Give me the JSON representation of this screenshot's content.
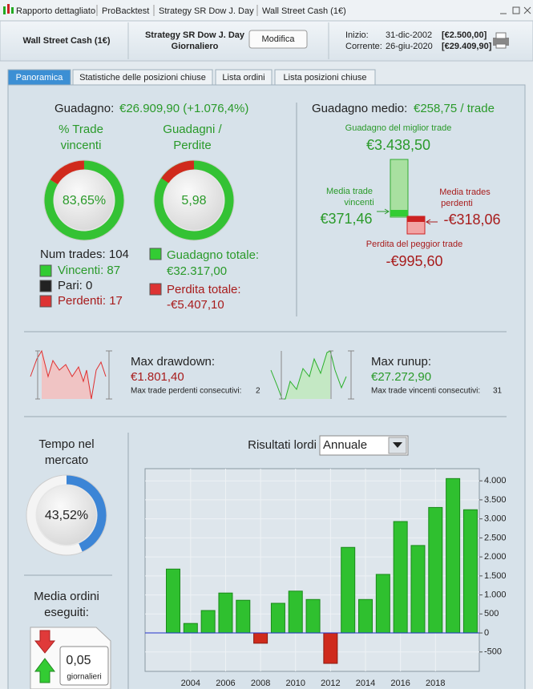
{
  "titlebar": {
    "tabs": [
      "Rapporto dettagliato",
      "ProBacktest",
      "Strategy SR Dow J. Day",
      "Wall Street Cash (1€)"
    ]
  },
  "header": {
    "instrument": "Wall Street Cash (1€)",
    "strategy": "Strategy SR Dow J. Day",
    "timeframe": "Giornaliero",
    "button": "Modifica",
    "start_label": "Inizio:",
    "start_date": "31-dic-2002",
    "start_value": "[€2.500,00]",
    "current_label": "Corrente:",
    "current_date": "26-giu-2020",
    "current_value": "[€29.409,90]"
  },
  "tabs": [
    "Panoramica",
    "Statistiche delle posizioni chiuse",
    "Lista ordini",
    "Lista posizioni chiuse"
  ],
  "overview": {
    "gain_label": "Guadagno:",
    "gain_value": "€26.909,90 (+1.076,4%)",
    "win_rate": {
      "title": [
        "% Trade",
        "vincenti"
      ],
      "value": 83.65,
      "label": "83,65%"
    },
    "profit_loss": {
      "title": [
        "Guadagni /",
        "Perdite"
      ],
      "label": "5,98"
    },
    "num_trades": "Num trades: 104",
    "winners": "Vincenti: 87",
    "even": "Pari: 0",
    "losers": "Perdenti: 17",
    "total_gain_label": "Guadagno totale:",
    "total_gain": "€32.317,00",
    "total_loss_label": "Perdita totale:",
    "total_loss": "-€5.407,10",
    "avg_gain_label": "Guadagno medio:",
    "avg_gain": "€258,75 / trade",
    "best_trade_label": "Guadagno del miglior trade",
    "best_trade": "€3.438,50",
    "avg_win_label": [
      "Media trade",
      "vincenti"
    ],
    "avg_win": "€371,46",
    "avg_loss_label": [
      "Media trades",
      "perdenti"
    ],
    "avg_loss": "-€318,06",
    "worst_trade_label": "Perdita del peggior trade",
    "worst_trade": "-€995,60",
    "drawdown_label": "Max drawdown:",
    "drawdown": "€1.801,40",
    "max_losing_label": "Max trade perdenti consecutivi:",
    "max_losing": 2,
    "runup_label": "Max runup:",
    "runup": "€27.272,90",
    "max_winning_label": "Max trade vincenti consecutivi:",
    "max_winning": 31,
    "market_time": {
      "title": [
        "Tempo nel",
        "mercato"
      ],
      "value": 43.52,
      "label": "43,52%"
    },
    "orders": {
      "title": [
        "Media ordini",
        "eseguiti:"
      ],
      "value": "0,05",
      "unit": "giornalieri"
    },
    "results_label": "Risultati lordi",
    "period": "Annuale"
  },
  "chart_data": {
    "type": "bar",
    "categories": [
      null,
      "2004",
      null,
      "2006",
      null,
      "2008",
      null,
      "2010",
      null,
      "2012",
      null,
      "2014",
      null,
      "2016",
      null,
      "2018",
      null,
      null
    ],
    "values": [
      1680,
      250,
      590,
      1050,
      860,
      -270,
      780,
      1100,
      880,
      -800,
      2250,
      880,
      1540,
      2930,
      2300,
      3300,
      4060,
      3240
    ],
    "color": "#2fc02f",
    "negative_color": "#cf2a1c",
    "ylim": [
      -1010,
      4320
    ],
    "yticks": [
      {
        "value": 4000,
        "label": "4.000"
      },
      {
        "value": 3500,
        "label": "3.500"
      },
      {
        "value": 3000,
        "label": "3.000"
      },
      {
        "value": 2500,
        "label": "2.500"
      },
      {
        "value": 2000,
        "label": "2.000"
      },
      {
        "value": 1500,
        "label": "1.500"
      },
      {
        "value": 1000,
        "label": "1.000"
      },
      500,
      0,
      -500
    ],
    "grid": true
  }
}
